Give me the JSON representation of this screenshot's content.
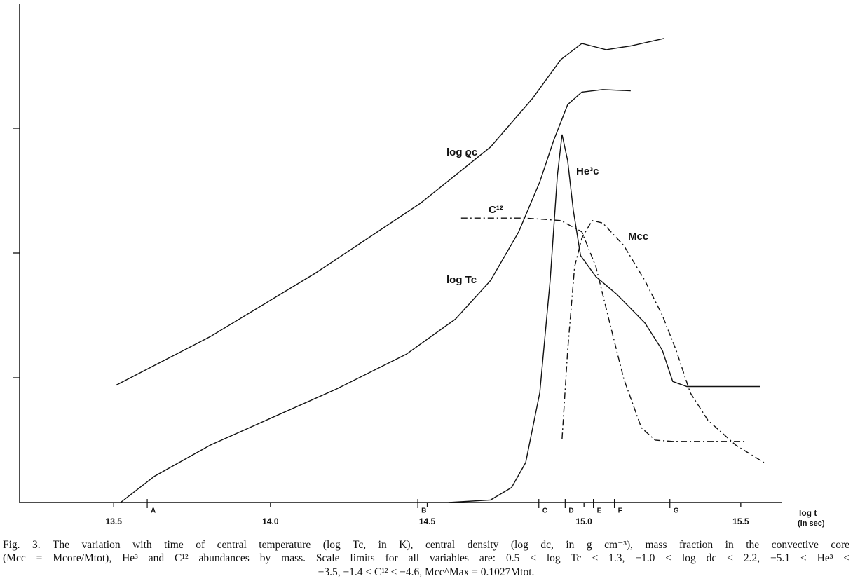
{
  "chart_data": {
    "type": "line",
    "xlabel": "log t",
    "xlabel_unit": "(in sec)",
    "xlim": [
      13.2,
      15.63
    ],
    "ylim": [
      0,
      4
    ],
    "xticks": [
      13.5,
      {
        "value": 14,
        "label": "14.0"
      },
      14.5,
      {
        "value": 15,
        "label": "15.0"
      },
      15.5
    ],
    "yticks": [
      1,
      2,
      3
    ],
    "markers": [
      {
        "label": "A",
        "x": 13.607
      },
      {
        "label": "B",
        "x": 14.47
      },
      {
        "label": "C",
        "x": 14.856
      },
      {
        "label": "D",
        "x": 14.94
      },
      {
        "label": "E",
        "x": 15.03
      },
      {
        "label": "F",
        "x": 15.097
      },
      {
        "label": "G",
        "x": 15.274
      }
    ],
    "series": [
      {
        "name": "log ϱc",
        "color": "#111",
        "style": "solid",
        "x": [
          13.507,
          13.808,
          14.144,
          14.479,
          14.702,
          14.836,
          14.926,
          14.993,
          15.071,
          15.149,
          15.256
        ],
        "values": [
          0.94,
          1.33,
          1.84,
          2.4,
          2.85,
          3.24,
          3.55,
          3.68,
          3.63,
          3.66,
          3.72
        ]
      },
      {
        "name": "log Tc",
        "color": "#111",
        "style": "solid",
        "x": [
          13.522,
          13.63,
          13.808,
          13.987,
          14.211,
          14.434,
          14.59,
          14.702,
          14.792,
          14.859,
          14.903,
          14.948,
          14.993,
          15.06,
          15.149
        ],
        "values": [
          0,
          0.21,
          0.46,
          0.66,
          0.91,
          1.19,
          1.47,
          1.78,
          2.17,
          2.57,
          2.9,
          3.19,
          3.29,
          3.31,
          3.3
        ]
      },
      {
        "name": "He³c",
        "color": "#111",
        "style": "solid",
        "x": [
          14.568,
          14.702,
          14.769,
          14.814,
          14.859,
          14.892,
          14.915,
          14.93,
          14.948,
          14.966,
          14.989,
          15.038,
          15.104,
          15.194,
          15.25,
          15.283,
          15.328,
          15.563
        ],
        "values": [
          0,
          0.02,
          0.12,
          0.32,
          0.88,
          1.78,
          2.62,
          2.95,
          2.74,
          2.34,
          1.98,
          1.81,
          1.67,
          1.44,
          1.22,
          0.97,
          0.93,
          0.93
        ]
      },
      {
        "name": "C¹²",
        "color": "#111",
        "style": "dashdot",
        "x": [
          14.608,
          14.814,
          14.926,
          14.993,
          15.038,
          15.082,
          15.127,
          15.183,
          15.227,
          15.283,
          15.518
        ],
        "values": [
          2.28,
          2.28,
          2.26,
          2.17,
          1.89,
          1.44,
          0.99,
          0.6,
          0.5,
          0.49,
          0.49
        ]
      },
      {
        "name": "Mcc",
        "color": "#111",
        "style": "dashdot",
        "x": [
          14.93,
          14.948,
          14.97,
          14.993,
          15.026,
          15.06,
          15.127,
          15.194,
          15.25,
          15.294,
          15.339,
          15.395,
          15.484,
          15.574
        ],
        "values": [
          0.51,
          1.22,
          1.89,
          2.12,
          2.26,
          2.24,
          2.06,
          1.78,
          1.5,
          1.22,
          0.88,
          0.66,
          0.46,
          0.32
        ]
      }
    ]
  },
  "caption": [
    "Fig. 3.  The variation with time of central temperature (log Tc, in K), central density (log dc, in g cm⁻³), mass fraction in the convective core",
    "(Mcc = Mcore/Mtot), He³ and C¹² abundances by mass. Scale limits for all variables are: 0.5 < log Tc < 1.3, −1.0 < log dc < 2.2, −5.1 < He³ <",
    "−3.5, −1.4 < C¹² < −4.6, Mcc^Max = 0.1027Mtot."
  ]
}
